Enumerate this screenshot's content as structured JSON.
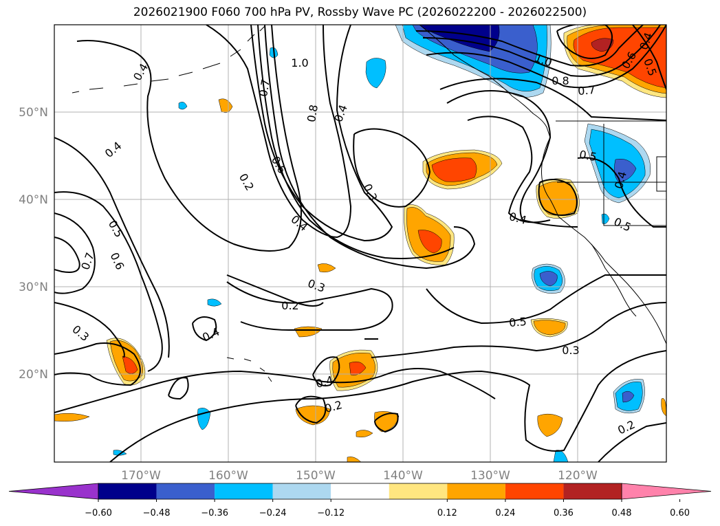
{
  "title": "2026021900 F060 700 hPa PV, Rossby Wave PC (2026022200 - 2026022500)",
  "colors": {
    "neg060": "#9932cc",
    "neg048": "#00008b",
    "neg036": "#3a5fcd",
    "neg024": "#00bfff",
    "neg012": "#add8f0",
    "neutral": "#ffffff",
    "pos012": "#ffe680",
    "pos024": "#ffa500",
    "pos036": "#ff4500",
    "pos048": "#b22222",
    "pos060": "#ff82ab",
    "contour": "#000000",
    "coast": "#000000",
    "grid": "#b0b0b0"
  },
  "axes": {
    "lon_labels": [
      "170°W",
      "160°W",
      "150°W",
      "140°W",
      "130°W",
      "120°W"
    ],
    "lat_labels": [
      "50°N",
      "40°N",
      "30°N",
      "20°N"
    ]
  },
  "colorbar": {
    "tick_labels": [
      "−0.60",
      "−0.48",
      "−0.36",
      "−0.24",
      "−0.12",
      "0.12",
      "0.24",
      "0.36",
      "0.48",
      "0.60"
    ]
  },
  "contour_labels": [
    {
      "text": "1.0"
    },
    {
      "text": "0.7"
    },
    {
      "text": "0.8"
    },
    {
      "text": "0.4"
    },
    {
      "text": "0.4"
    },
    {
      "text": "0.4"
    },
    {
      "text": "0.2"
    },
    {
      "text": "0.6"
    },
    {
      "text": "0.3"
    },
    {
      "text": "0.4"
    },
    {
      "text": "0.5"
    },
    {
      "text": "0.6"
    },
    {
      "text": "0.7"
    },
    {
      "text": "0.3"
    },
    {
      "text": "0.2"
    },
    {
      "text": "0.3"
    },
    {
      "text": "0.4"
    },
    {
      "text": "0.4"
    },
    {
      "text": "0.2"
    },
    {
      "text": "0.5"
    },
    {
      "text": "0.3"
    },
    {
      "text": "0.2"
    },
    {
      "text": "0.4"
    },
    {
      "text": "0.5"
    },
    {
      "text": "0.4"
    },
    {
      "text": "0.5"
    },
    {
      "text": "1.0"
    },
    {
      "text": "0.8"
    },
    {
      "text": "0.7"
    },
    {
      "text": "0.6"
    },
    {
      "text": "0.5"
    },
    {
      "text": "0.4"
    }
  ]
}
